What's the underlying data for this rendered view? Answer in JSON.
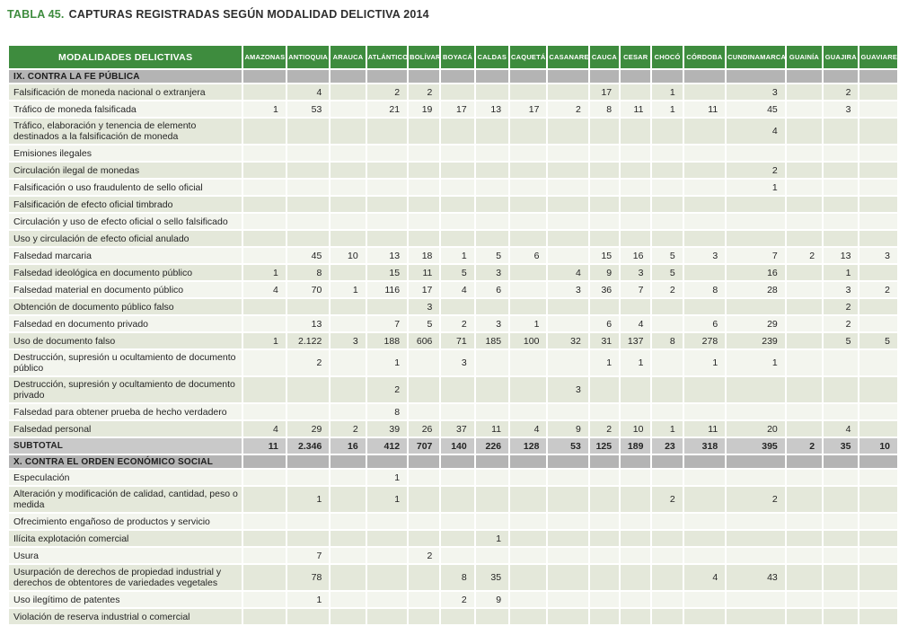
{
  "title": {
    "prefix": "TABLA 45.",
    "text": "CAPTURAS REGISTRADAS SEGÚN MODALIDAD DELICTIVA 2014"
  },
  "colors": {
    "header_green": "#3e8c3e",
    "section_gray": "#b4b4b4",
    "subtotal_gray": "#c9c9c9",
    "row_dark": "#e4e8da",
    "row_light": "#f3f5ee"
  },
  "table": {
    "label_header": "MODALIDADES DELICTIVAS",
    "columns": [
      "AMAZONAS",
      "ANTIOQUIA",
      "ARAUCA",
      "ATLÁNTICO",
      "BOLÍVAR",
      "BOYACÁ",
      "CALDAS",
      "CAQUETÁ",
      "CASANARE",
      "CAUCA",
      "CESAR",
      "CHOCÓ",
      "CÓRDOBA",
      "CUNDINAMARCA",
      "GUAINÍA",
      "GUAJIRA",
      "GUAVIARE"
    ],
    "sections": [
      {
        "header": "IX. CONTRA LA FE PÚBLICA",
        "rows": [
          {
            "label": "Falsificación de moneda nacional o extranjera",
            "values": [
              "",
              "4",
              "",
              "2",
              "2",
              "",
              "",
              "",
              "",
              "17",
              "",
              "1",
              "",
              "3",
              "",
              "2",
              ""
            ]
          },
          {
            "label": "Tráfico de moneda falsificada",
            "values": [
              "1",
              "53",
              "",
              "21",
              "19",
              "17",
              "13",
              "17",
              "2",
              "8",
              "11",
              "1",
              "11",
              "45",
              "",
              "3",
              ""
            ]
          },
          {
            "label": "Tráfico, elaboración y tenencia de elemento destinados  a la falsificación de moneda",
            "values": [
              "",
              "",
              "",
              "",
              "",
              "",
              "",
              "",
              "",
              "",
              "",
              "",
              "",
              "4",
              "",
              "",
              ""
            ]
          },
          {
            "label": "Emisiones ilegales",
            "values": [
              "",
              "",
              "",
              "",
              "",
              "",
              "",
              "",
              "",
              "",
              "",
              "",
              "",
              "",
              "",
              "",
              ""
            ]
          },
          {
            "label": "Circulación ilegal de monedas",
            "values": [
              "",
              "",
              "",
              "",
              "",
              "",
              "",
              "",
              "",
              "",
              "",
              "",
              "",
              "2",
              "",
              "",
              ""
            ]
          },
          {
            "label": "Falsificación o uso fraudulento de sello oficial",
            "values": [
              "",
              "",
              "",
              "",
              "",
              "",
              "",
              "",
              "",
              "",
              "",
              "",
              "",
              "1",
              "",
              "",
              ""
            ]
          },
          {
            "label": "Falsificación de efecto oficial timbrado",
            "values": [
              "",
              "",
              "",
              "",
              "",
              "",
              "",
              "",
              "",
              "",
              "",
              "",
              "",
              "",
              "",
              "",
              ""
            ]
          },
          {
            "label": "Circulación y uso de efecto oficial o sello falsificado",
            "values": [
              "",
              "",
              "",
              "",
              "",
              "",
              "",
              "",
              "",
              "",
              "",
              "",
              "",
              "",
              "",
              "",
              ""
            ]
          },
          {
            "label": "Uso y circulación de efecto oficial anulado",
            "values": [
              "",
              "",
              "",
              "",
              "",
              "",
              "",
              "",
              "",
              "",
              "",
              "",
              "",
              "",
              "",
              "",
              ""
            ]
          },
          {
            "label": "Falsedad marcaria",
            "values": [
              "",
              "45",
              "10",
              "13",
              "18",
              "1",
              "5",
              "6",
              "",
              "15",
              "16",
              "5",
              "3",
              "7",
              "2",
              "13",
              "3"
            ]
          },
          {
            "label": "Falsedad ideológica en documento público",
            "values": [
              "1",
              "8",
              "",
              "15",
              "11",
              "5",
              "3",
              "",
              "4",
              "9",
              "3",
              "5",
              "",
              "16",
              "",
              "1",
              ""
            ]
          },
          {
            "label": "Falsedad material en documento público",
            "values": [
              "4",
              "70",
              "1",
              "116",
              "17",
              "4",
              "6",
              "",
              "3",
              "36",
              "7",
              "2",
              "8",
              "28",
              "",
              "3",
              "2"
            ]
          },
          {
            "label": "Obtención de documento público falso",
            "values": [
              "",
              "",
              "",
              "",
              "3",
              "",
              "",
              "",
              "",
              "",
              "",
              "",
              "",
              "",
              "",
              "2",
              ""
            ]
          },
          {
            "label": "Falsedad en documento privado",
            "values": [
              "",
              "13",
              "",
              "7",
              "5",
              "2",
              "3",
              "1",
              "",
              "6",
              "4",
              "",
              "6",
              "29",
              "",
              "2",
              ""
            ]
          },
          {
            "label": "Uso de documento falso",
            "values": [
              "1",
              "2.122",
              "3",
              "188",
              "606",
              "71",
              "185",
              "100",
              "32",
              "31",
              "137",
              "8",
              "278",
              "239",
              "",
              "5",
              "5"
            ]
          },
          {
            "label": "Destrucción, supresión u ocultamiento de documento público",
            "values": [
              "",
              "2",
              "",
              "1",
              "",
              "3",
              "",
              "",
              "",
              "1",
              "1",
              "",
              "1",
              "1",
              "",
              "",
              ""
            ]
          },
          {
            "label": "Destrucción, supresión y ocultamiento de documento privado",
            "values": [
              "",
              "",
              "",
              "2",
              "",
              "",
              "",
              "",
              "3",
              "",
              "",
              "",
              "",
              "",
              "",
              "",
              ""
            ]
          },
          {
            "label": "Falsedad para obtener prueba de hecho verdadero",
            "values": [
              "",
              "",
              "",
              "8",
              "",
              "",
              "",
              "",
              "",
              "",
              "",
              "",
              "",
              "",
              "",
              "",
              ""
            ]
          },
          {
            "label": "Falsedad personal",
            "values": [
              "4",
              "29",
              "2",
              "39",
              "26",
              "37",
              "11",
              "4",
              "9",
              "2",
              "10",
              "1",
              "11",
              "20",
              "",
              "4",
              ""
            ]
          }
        ],
        "subtotal": {
          "label": "SUBTOTAL",
          "values": [
            "11",
            "2.346",
            "16",
            "412",
            "707",
            "140",
            "226",
            "128",
            "53",
            "125",
            "189",
            "23",
            "318",
            "395",
            "2",
            "35",
            "10"
          ]
        }
      },
      {
        "header": "X. CONTRA EL ORDEN ECONÓMICO SOCIAL",
        "rows": [
          {
            "label": "Especulación",
            "values": [
              "",
              "",
              "",
              "1",
              "",
              "",
              "",
              "",
              "",
              "",
              "",
              "",
              "",
              "",
              "",
              "",
              ""
            ]
          },
          {
            "label": "Alteración y modificación de calidad, cantidad, peso o medida",
            "values": [
              "",
              "1",
              "",
              "1",
              "",
              "",
              "",
              "",
              "",
              "",
              "",
              "2",
              "",
              "2",
              "",
              "",
              ""
            ]
          },
          {
            "label": "Ofrecimiento engañoso de productos y servicio",
            "values": [
              "",
              "",
              "",
              "",
              "",
              "",
              "",
              "",
              "",
              "",
              "",
              "",
              "",
              "",
              "",
              "",
              ""
            ]
          },
          {
            "label": "Ilícita explotación comercial",
            "values": [
              "",
              "",
              "",
              "",
              "",
              "",
              "1",
              "",
              "",
              "",
              "",
              "",
              "",
              "",
              "",
              "",
              ""
            ]
          },
          {
            "label": "Usura",
            "values": [
              "",
              "7",
              "",
              "",
              "2",
              "",
              "",
              "",
              "",
              "",
              "",
              "",
              "",
              "",
              "",
              "",
              ""
            ]
          },
          {
            "label": "Usurpación de derechos de propiedad industrial y derechos de obtentores de variedades vegetales",
            "values": [
              "",
              "78",
              "",
              "",
              "",
              "8",
              "35",
              "",
              "",
              "",
              "",
              "",
              "4",
              "43",
              "",
              "",
              ""
            ]
          },
          {
            "label": "Uso ilegítimo de patentes",
            "values": [
              "",
              "1",
              "",
              "",
              "",
              "2",
              "9",
              "",
              "",
              "",
              "",
              "",
              "",
              "",
              "",
              "",
              ""
            ]
          },
          {
            "label": "Violación de reserva industrial o comercial",
            "values": [
              "",
              "",
              "",
              "",
              "",
              "",
              "",
              "",
              "",
              "",
              "",
              "",
              "",
              "",
              "",
              "",
              ""
            ]
          }
        ]
      }
    ]
  }
}
